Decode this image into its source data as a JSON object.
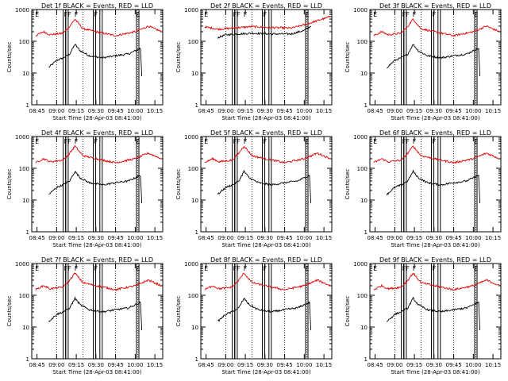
{
  "figure": {
    "ylabel": "Counts/sec",
    "xlabel_prefix": "Start Time",
    "start_time": "(28-Apr-03 08:41:00)",
    "title_suffix": "BLACK = Events, RED = LLD",
    "series_colors": {
      "events": "#000000",
      "lld": "#e00000"
    },
    "x_ticks": [
      "08:45",
      "09:00",
      "09:15",
      "09:30",
      "09:45",
      "10:00",
      "10:15"
    ],
    "y_ticks": [
      "1",
      "10",
      "100",
      "1000"
    ],
    "flag_labels": [
      "E",
      "FF",
      "F",
      "F",
      "E"
    ]
  },
  "chart_data": [
    {
      "type": "line",
      "title": "Det 1f BLACK = Events, RED = LLD",
      "xlabel": "Start Time (28-Apr-03 08:41:00)",
      "ylabel": "Counts/sec",
      "x_range": [
        "08:41",
        "10:21"
      ],
      "yscale": "log",
      "ylim": [
        1,
        1000
      ],
      "series": [
        {
          "name": "Events",
          "x": [
            "08:54",
            "09:00",
            "09:05",
            "09:10",
            "09:14",
            "09:18",
            "09:25",
            "09:35",
            "09:45",
            "09:55",
            "10:04",
            "10:05"
          ],
          "values": [
            15,
            25,
            30,
            40,
            80,
            50,
            35,
            30,
            35,
            40,
            60,
            8
          ]
        },
        {
          "name": "LLD",
          "x": [
            "08:44",
            "08:50",
            "08:55",
            "09:05",
            "09:10",
            "09:14",
            "09:20",
            "09:30",
            "09:45",
            "10:00",
            "10:10",
            "10:20"
          ],
          "values": [
            150,
            200,
            160,
            180,
            300,
            500,
            250,
            200,
            150,
            200,
            300,
            200
          ]
        }
      ]
    },
    {
      "type": "line",
      "title": "Det 2f BLACK = Events, RED = LLD",
      "xlabel": "Start Time (28-Apr-03 08:41:00)",
      "ylabel": "Counts/sec",
      "x_range": [
        "08:41",
        "10:21"
      ],
      "yscale": "log",
      "ylim": [
        1,
        1000
      ],
      "series": [
        {
          "name": "Events",
          "x": [
            "08:54",
            "09:00",
            "09:10",
            "09:20",
            "09:35",
            "09:50",
            "10:00",
            "10:05"
          ],
          "values": [
            130,
            160,
            170,
            180,
            170,
            170,
            220,
            300
          ]
        },
        {
          "name": "LLD",
          "x": [
            "08:44",
            "08:50",
            "08:54",
            "09:00",
            "09:10",
            "09:20",
            "09:35",
            "09:50",
            "10:00",
            "10:20"
          ],
          "values": [
            280,
            260,
            240,
            250,
            270,
            290,
            270,
            260,
            330,
            600
          ]
        }
      ]
    },
    {
      "type": "line",
      "title": "Det 3f BLACK = Events, RED = LLD",
      "xlabel": "Start Time (28-Apr-03 08:41:00)",
      "ylabel": "Counts/sec",
      "x_range": [
        "08:41",
        "10:21"
      ],
      "yscale": "log",
      "ylim": [
        1,
        1000
      ],
      "series": [
        {
          "name": "Events",
          "x": [
            "08:54",
            "09:00",
            "09:05",
            "09:10",
            "09:14",
            "09:18",
            "09:25",
            "09:35",
            "09:45",
            "09:55",
            "10:04",
            "10:05"
          ],
          "values": [
            15,
            25,
            30,
            40,
            80,
            50,
            35,
            30,
            35,
            40,
            60,
            8
          ]
        },
        {
          "name": "LLD",
          "x": [
            "08:44",
            "08:50",
            "08:55",
            "09:05",
            "09:10",
            "09:14",
            "09:20",
            "09:30",
            "09:45",
            "10:00",
            "10:10",
            "10:20"
          ],
          "values": [
            150,
            200,
            160,
            180,
            300,
            500,
            250,
            200,
            150,
            200,
            300,
            200
          ]
        }
      ]
    },
    {
      "type": "line",
      "title": "Det 4f BLACK = Events, RED = LLD",
      "xlabel": "Start Time (28-Apr-03 08:41:00)",
      "ylabel": "Counts/sec",
      "x_range": [
        "08:41",
        "10:21"
      ],
      "yscale": "log",
      "ylim": [
        1,
        1000
      ],
      "series": [
        {
          "name": "Events",
          "x": [
            "08:54",
            "09:00",
            "09:05",
            "09:10",
            "09:14",
            "09:18",
            "09:25",
            "09:35",
            "09:45",
            "09:55",
            "10:04",
            "10:05"
          ],
          "values": [
            15,
            25,
            30,
            40,
            80,
            50,
            35,
            30,
            35,
            40,
            60,
            8
          ]
        },
        {
          "name": "LLD",
          "x": [
            "08:44",
            "08:50",
            "08:55",
            "09:05",
            "09:10",
            "09:14",
            "09:20",
            "09:30",
            "09:45",
            "10:00",
            "10:10",
            "10:20"
          ],
          "values": [
            150,
            200,
            160,
            180,
            300,
            500,
            250,
            200,
            150,
            200,
            300,
            200
          ]
        }
      ]
    },
    {
      "type": "line",
      "title": "Det 5f BLACK = Events, RED = LLD",
      "xlabel": "Start Time (28-Apr-03 08:41:00)",
      "ylabel": "Counts/sec",
      "x_range": [
        "08:41",
        "10:21"
      ],
      "yscale": "log",
      "ylim": [
        1,
        1000
      ],
      "series": [
        {
          "name": "Events",
          "x": [
            "08:54",
            "09:00",
            "09:05",
            "09:10",
            "09:14",
            "09:18",
            "09:25",
            "09:35",
            "09:45",
            "09:55",
            "10:04",
            "10:05"
          ],
          "values": [
            15,
            25,
            30,
            40,
            80,
            50,
            35,
            30,
            35,
            40,
            60,
            8
          ]
        },
        {
          "name": "LLD",
          "x": [
            "08:44",
            "08:50",
            "08:55",
            "09:05",
            "09:10",
            "09:14",
            "09:20",
            "09:30",
            "09:45",
            "10:00",
            "10:10",
            "10:20"
          ],
          "values": [
            150,
            200,
            160,
            180,
            300,
            500,
            250,
            200,
            150,
            200,
            300,
            200
          ]
        }
      ]
    },
    {
      "type": "line",
      "title": "Det 6f BLACK = Events, RED = LLD",
      "xlabel": "Start Time (28-Apr-03 08:41:00)",
      "ylabel": "Counts/sec",
      "x_range": [
        "08:41",
        "10:21"
      ],
      "yscale": "log",
      "ylim": [
        1,
        1000
      ],
      "series": [
        {
          "name": "Events",
          "x": [
            "08:54",
            "09:00",
            "09:05",
            "09:10",
            "09:14",
            "09:18",
            "09:25",
            "09:35",
            "09:45",
            "09:55",
            "10:04",
            "10:05"
          ],
          "values": [
            15,
            25,
            30,
            40,
            80,
            50,
            35,
            30,
            35,
            40,
            60,
            8
          ]
        },
        {
          "name": "LLD",
          "x": [
            "08:44",
            "08:50",
            "08:55",
            "09:05",
            "09:10",
            "09:14",
            "09:20",
            "09:30",
            "09:45",
            "10:00",
            "10:10",
            "10:20"
          ],
          "values": [
            150,
            200,
            160,
            180,
            300,
            500,
            250,
            200,
            150,
            200,
            300,
            200
          ]
        }
      ]
    },
    {
      "type": "line",
      "title": "Det 7f BLACK = Events, RED = LLD",
      "xlabel": "Start Time (28-Apr-03 08:41:00)",
      "ylabel": "Counts/sec",
      "x_range": [
        "08:41",
        "10:21"
      ],
      "yscale": "log",
      "ylim": [
        1,
        1000
      ],
      "series": [
        {
          "name": "Events",
          "x": [
            "08:54",
            "09:00",
            "09:05",
            "09:10",
            "09:14",
            "09:18",
            "09:25",
            "09:35",
            "09:45",
            "09:55",
            "10:04",
            "10:05"
          ],
          "values": [
            15,
            25,
            30,
            40,
            80,
            50,
            35,
            30,
            35,
            40,
            60,
            8
          ]
        },
        {
          "name": "LLD",
          "x": [
            "08:44",
            "08:50",
            "08:55",
            "09:05",
            "09:10",
            "09:14",
            "09:20",
            "09:30",
            "09:45",
            "10:00",
            "10:10",
            "10:20"
          ],
          "values": [
            150,
            200,
            160,
            180,
            300,
            500,
            250,
            200,
            150,
            200,
            300,
            200
          ]
        }
      ]
    },
    {
      "type": "line",
      "title": "Det 8f BLACK = Events, RED = LLD",
      "xlabel": "Start Time (28-Apr-03 08:41:00)",
      "ylabel": "Counts/sec",
      "x_range": [
        "08:41",
        "10:21"
      ],
      "yscale": "log",
      "ylim": [
        1,
        1000
      ],
      "series": [
        {
          "name": "Events",
          "x": [
            "08:54",
            "09:00",
            "09:05",
            "09:10",
            "09:14",
            "09:18",
            "09:25",
            "09:35",
            "09:45",
            "09:55",
            "10:04",
            "10:05"
          ],
          "values": [
            15,
            25,
            30,
            40,
            80,
            50,
            35,
            30,
            35,
            40,
            60,
            8
          ]
        },
        {
          "name": "LLD",
          "x": [
            "08:44",
            "08:50",
            "08:55",
            "09:05",
            "09:10",
            "09:14",
            "09:20",
            "09:30",
            "09:45",
            "10:00",
            "10:10",
            "10:20"
          ],
          "values": [
            150,
            200,
            160,
            180,
            300,
            500,
            250,
            200,
            150,
            200,
            300,
            200
          ]
        }
      ]
    },
    {
      "type": "line",
      "title": "Det 9f BLACK = Events, RED = LLD",
      "xlabel": "Start Time (28-Apr-03 08:41:00)",
      "ylabel": "Counts/sec",
      "x_range": [
        "08:41",
        "10:21"
      ],
      "yscale": "log",
      "ylim": [
        1,
        1000
      ],
      "series": [
        {
          "name": "Events",
          "x": [
            "08:54",
            "09:00",
            "09:05",
            "09:10",
            "09:14",
            "09:18",
            "09:25",
            "09:35",
            "09:45",
            "09:55",
            "10:04",
            "10:05"
          ],
          "values": [
            15,
            25,
            30,
            40,
            80,
            50,
            35,
            30,
            35,
            40,
            60,
            8
          ]
        },
        {
          "name": "LLD",
          "x": [
            "08:44",
            "08:50",
            "08:55",
            "09:05",
            "09:10",
            "09:14",
            "09:20",
            "09:30",
            "09:45",
            "10:00",
            "10:10",
            "10:20"
          ],
          "values": [
            150,
            200,
            160,
            180,
            300,
            500,
            250,
            200,
            150,
            200,
            300,
            200
          ]
        }
      ]
    }
  ]
}
